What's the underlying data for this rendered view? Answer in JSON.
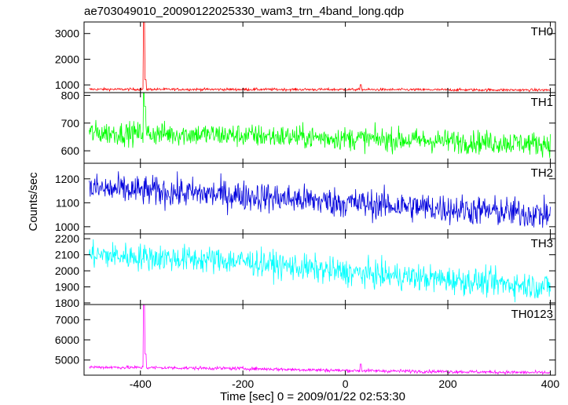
{
  "chart_data": {
    "type": "line",
    "title": "ae703049010_20090122025330_wam3_trn_4band_long.qdp",
    "xlabel": "Time [sec] 0 = 2009/01/22 02:53:30",
    "ylabel": "Counts/sec",
    "xlim": [
      -510,
      410
    ],
    "x_ticks": [
      -400,
      -200,
      0,
      200,
      400
    ],
    "grid": false,
    "panels": [
      {
        "name": "TH0",
        "color": "#ff0000",
        "ylim": [
          700,
          3450
        ],
        "y_ticks": [
          1000,
          2000,
          3000
        ],
        "baseline": [
          [
            -500,
            830
          ],
          [
            0,
            820
          ],
          [
            400,
            800
          ]
        ],
        "noise": 35,
        "spikes": [
          [
            -393,
            3450
          ],
          [
            -390,
            1200
          ],
          [
            30,
            1010
          ]
        ]
      },
      {
        "name": "TH1",
        "color": "#00ff00",
        "ylim": [
          555,
          810
        ],
        "y_ticks": [
          600,
          700,
          800
        ],
        "baseline": [
          [
            -500,
            665
          ],
          [
            -300,
            660
          ],
          [
            0,
            645
          ],
          [
            400,
            625
          ]
        ],
        "noise": 30,
        "spikes": [
          [
            -393,
            820
          ],
          [
            -391,
            760
          ]
        ]
      },
      {
        "name": "TH2",
        "color": "#0000dd",
        "ylim": [
          970,
          1265
        ],
        "y_ticks": [
          1000,
          1100,
          1200
        ],
        "baseline": [
          [
            -500,
            1160
          ],
          [
            -200,
            1130
          ],
          [
            0,
            1100
          ],
          [
            400,
            1050
          ]
        ],
        "noise": 45,
        "spikes": []
      },
      {
        "name": "TH3",
        "color": "#00ffff",
        "ylim": [
          1790,
          2230
        ],
        "y_ticks": [
          1800,
          1900,
          2000,
          2100,
          2200
        ],
        "baseline": [
          [
            -500,
            2100
          ],
          [
            -200,
            2060
          ],
          [
            0,
            1990
          ],
          [
            400,
            1900
          ]
        ],
        "noise": 60,
        "spikes": []
      },
      {
        "name": "TH0123",
        "color": "#ff00ff",
        "ylim": [
          4250,
          7750
        ],
        "y_ticks": [
          5000,
          6000,
          7000
        ],
        "baseline": [
          [
            -500,
            4650
          ],
          [
            -200,
            4580
          ],
          [
            0,
            4480
          ],
          [
            400,
            4370
          ]
        ],
        "noise": 60,
        "spikes": [
          [
            -393,
            7750
          ],
          [
            -390,
            5300
          ],
          [
            30,
            4800
          ]
        ]
      }
    ]
  }
}
